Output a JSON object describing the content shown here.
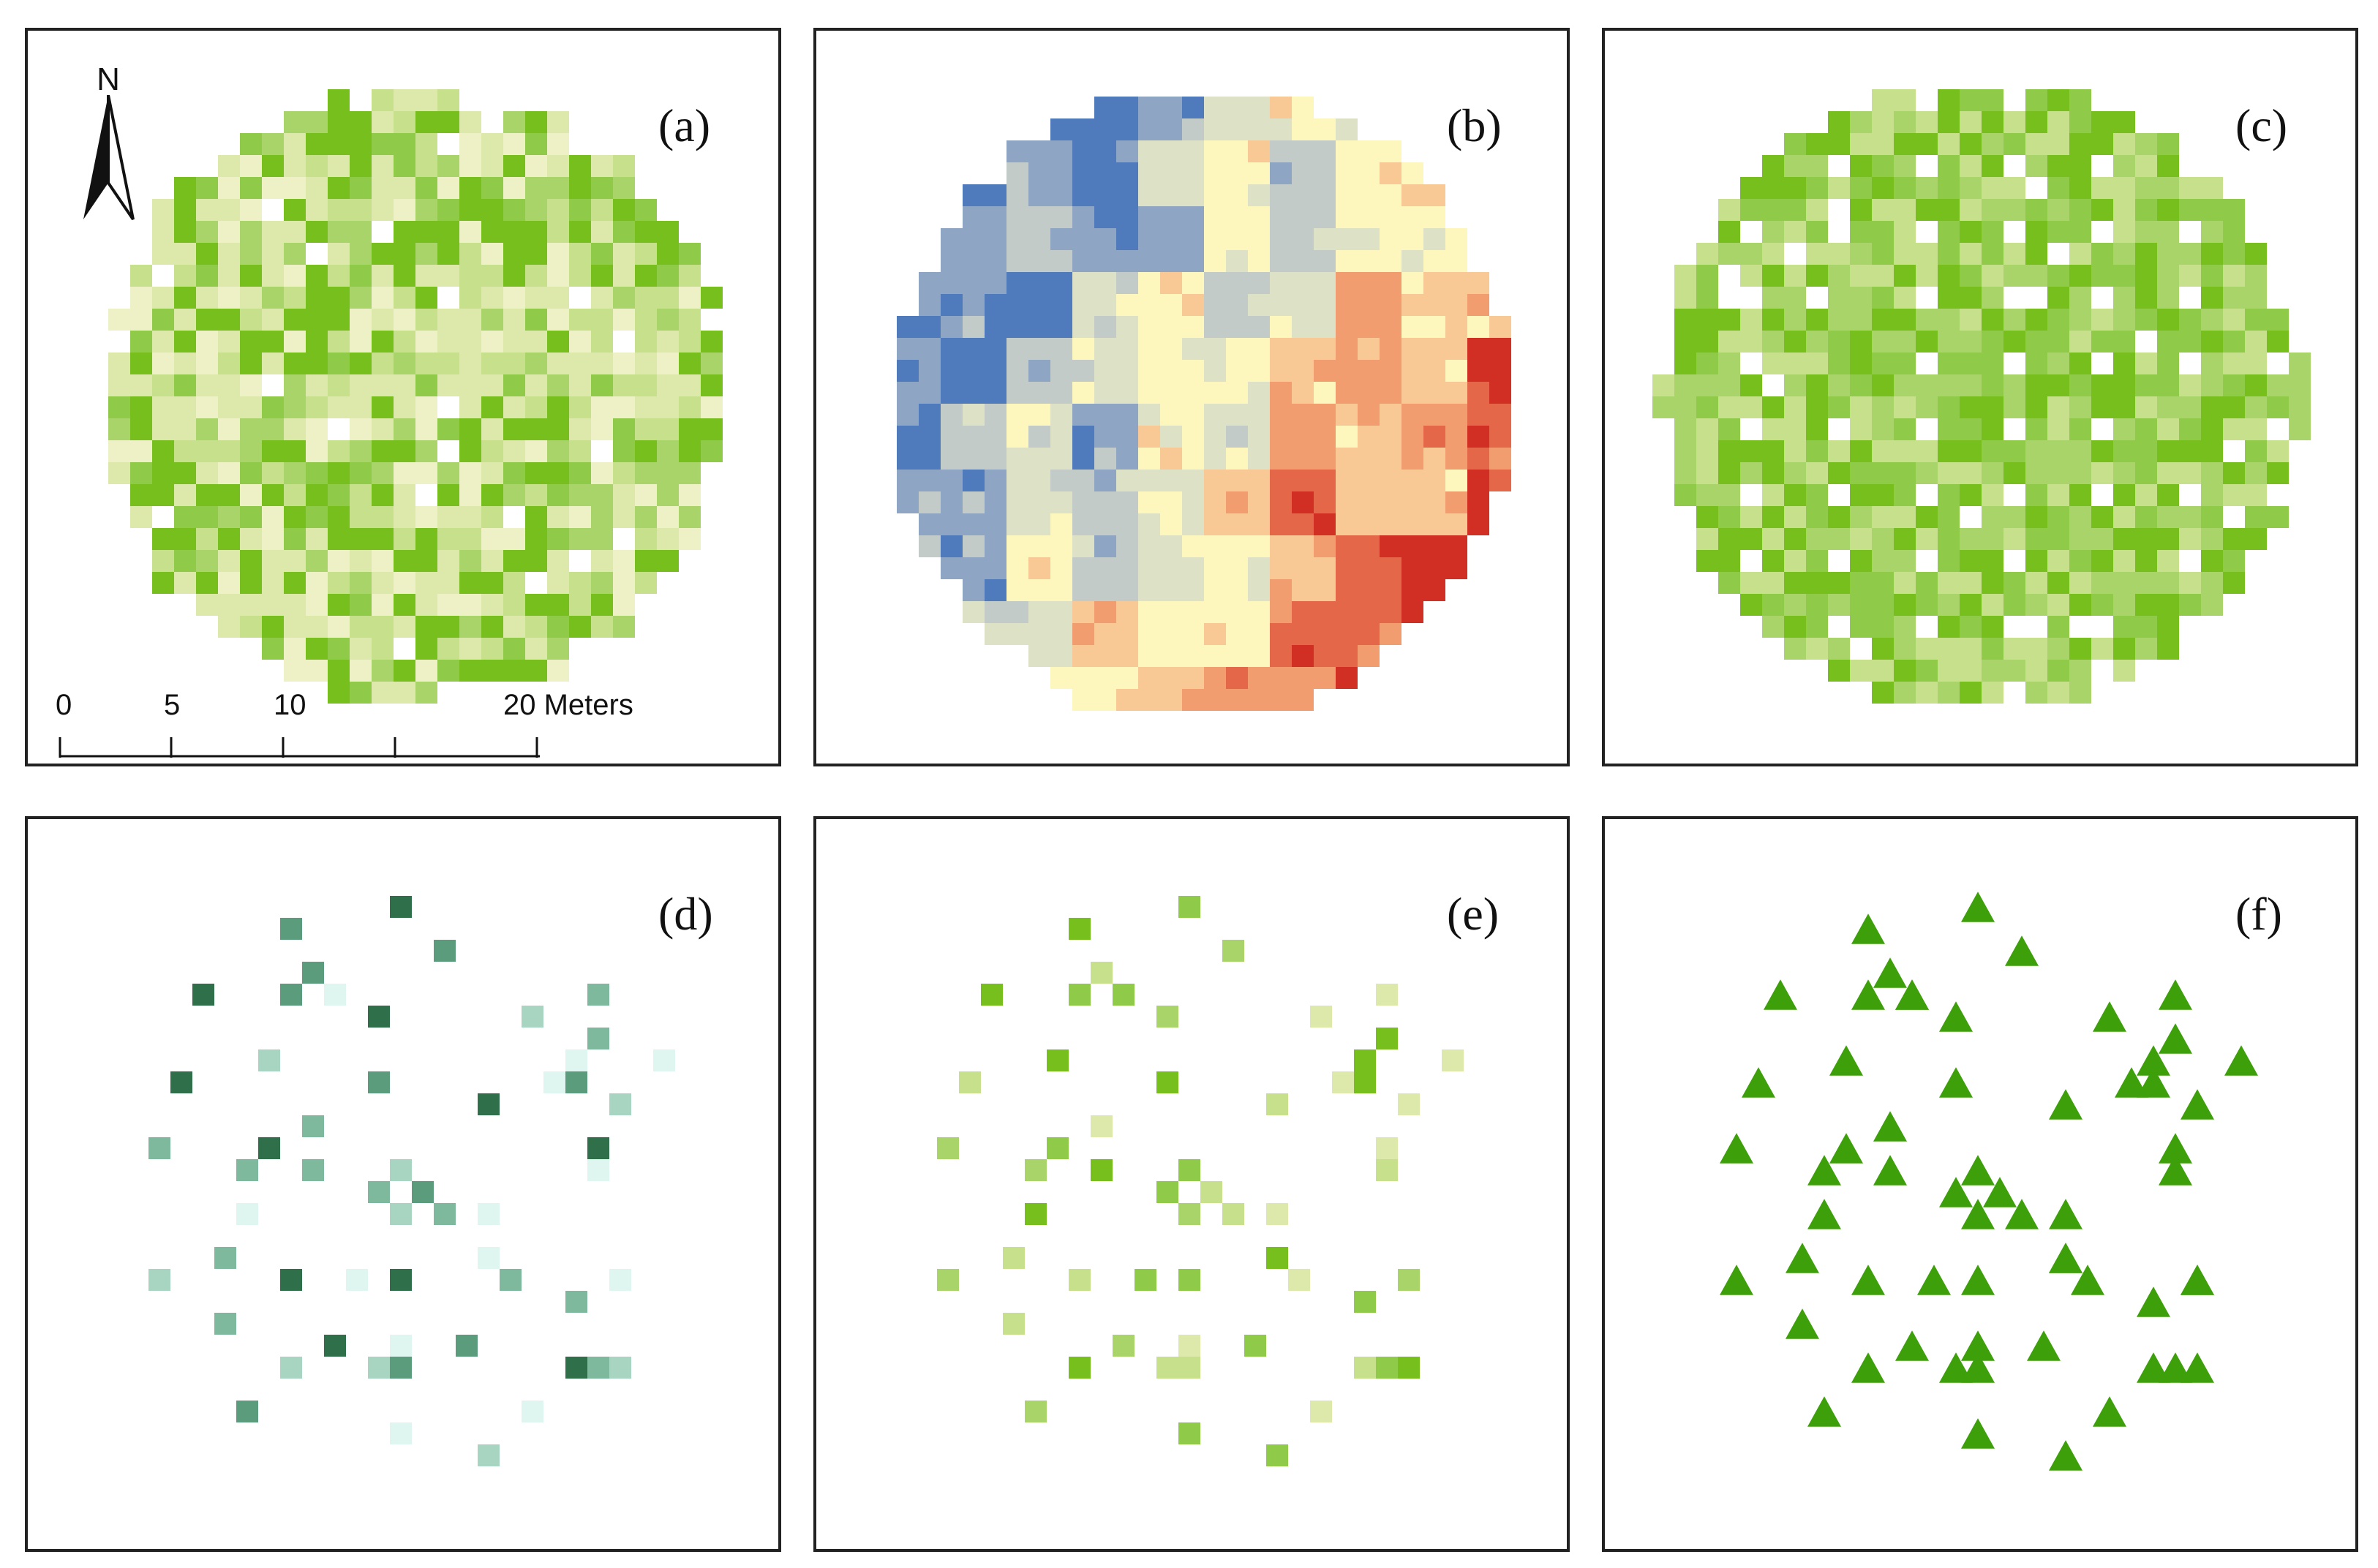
{
  "figure": {
    "panels": [
      {
        "id": "a",
        "label": "(a)",
        "content": "ndvi-grid"
      },
      {
        "id": "b",
        "label": "(b)",
        "content": "diverging-grid"
      },
      {
        "id": "c",
        "label": "(c)",
        "content": "prediction-grid"
      },
      {
        "id": "d",
        "label": "(d)",
        "content": "sample-squares-teal"
      },
      {
        "id": "e",
        "label": "(e)",
        "content": "sample-squares-green"
      },
      {
        "id": "f",
        "label": "(f)",
        "content": "sample-triangles"
      }
    ],
    "north_arrow": {
      "letter": "N"
    },
    "scale_bar": {
      "ticks": [
        "0",
        "5",
        "10",
        "20"
      ],
      "units": "Meters",
      "label_20": "20 Meters"
    },
    "colors": {
      "frame": "#222222",
      "green_ramp": [
        "#eef0c6",
        "#dde9aa",
        "#c6e08b",
        "#a9d46a",
        "#8fca48",
        "#76bf1c"
      ],
      "diverging_ramp": [
        "#4f7bbd",
        "#8ea6c4",
        "#c3cbc9",
        "#dde1c6",
        "#fdf7bd",
        "#f8c994",
        "#f19d70",
        "#e4674a",
        "#d12f24"
      ],
      "teal_ramp": [
        "#dff5ef",
        "#a8d5c1",
        "#7fb99d",
        "#5a9c7c",
        "#2f6f4a"
      ],
      "triangle": "#3d9f0a"
    }
  }
}
